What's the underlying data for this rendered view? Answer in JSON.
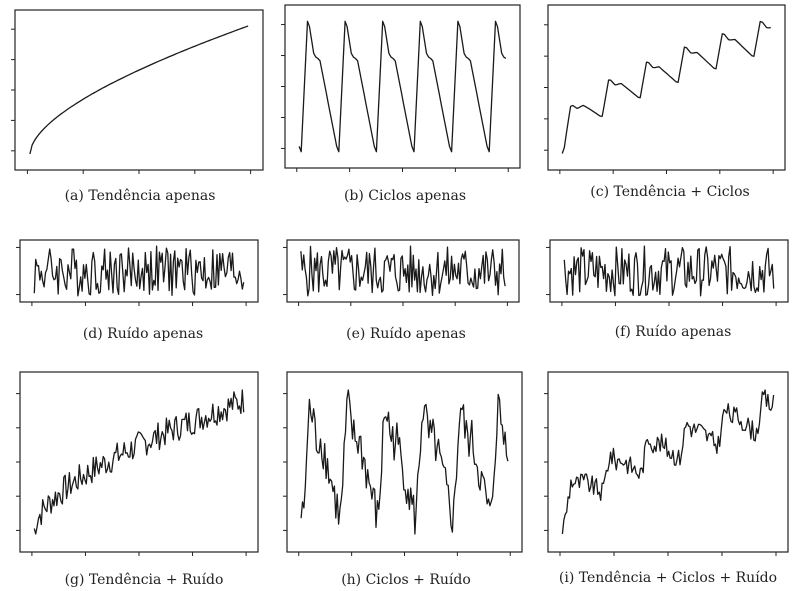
{
  "chart_data": [
    {
      "id": "a",
      "type": "line",
      "caption": "(a) Tendência apenas",
      "pattern": "trend",
      "noise": 0,
      "grid": false,
      "seed": 1
    },
    {
      "id": "b",
      "type": "line",
      "caption": "(b) Ciclos apenas",
      "pattern": "cycles",
      "noise": 0,
      "grid": false,
      "seed": 2
    },
    {
      "id": "c",
      "type": "line",
      "caption": "(c) Tendência + Ciclos",
      "pattern": "trend+cycles",
      "noise": 0,
      "grid": false,
      "seed": 3
    },
    {
      "id": "d",
      "type": "line",
      "caption": "(d) Ruído apenas",
      "pattern": "noise",
      "noise": 1,
      "grid": false,
      "seed": 4
    },
    {
      "id": "e",
      "type": "line",
      "caption": "(e) Ruído apenas",
      "pattern": "noise",
      "noise": 1,
      "grid": false,
      "seed": 5
    },
    {
      "id": "f",
      "type": "line",
      "caption": "(f) Ruído apenas",
      "pattern": "noise",
      "noise": 1,
      "grid": false,
      "seed": 6
    },
    {
      "id": "g",
      "type": "line",
      "caption": "(g) Tendência + Ruído",
      "pattern": "trend+noise",
      "noise": 1,
      "grid": false,
      "seed": 7
    },
    {
      "id": "h",
      "type": "line",
      "caption": "(h) Ciclos + Ruído",
      "pattern": "cycles+noise",
      "noise": 1,
      "grid": false,
      "seed": 8
    },
    {
      "id": "i",
      "type": "line",
      "caption": "(i) Tendência + Ciclos + Ruído",
      "pattern": "trend+cycles+noise",
      "noise": 1,
      "grid": false,
      "seed": 9
    }
  ]
}
